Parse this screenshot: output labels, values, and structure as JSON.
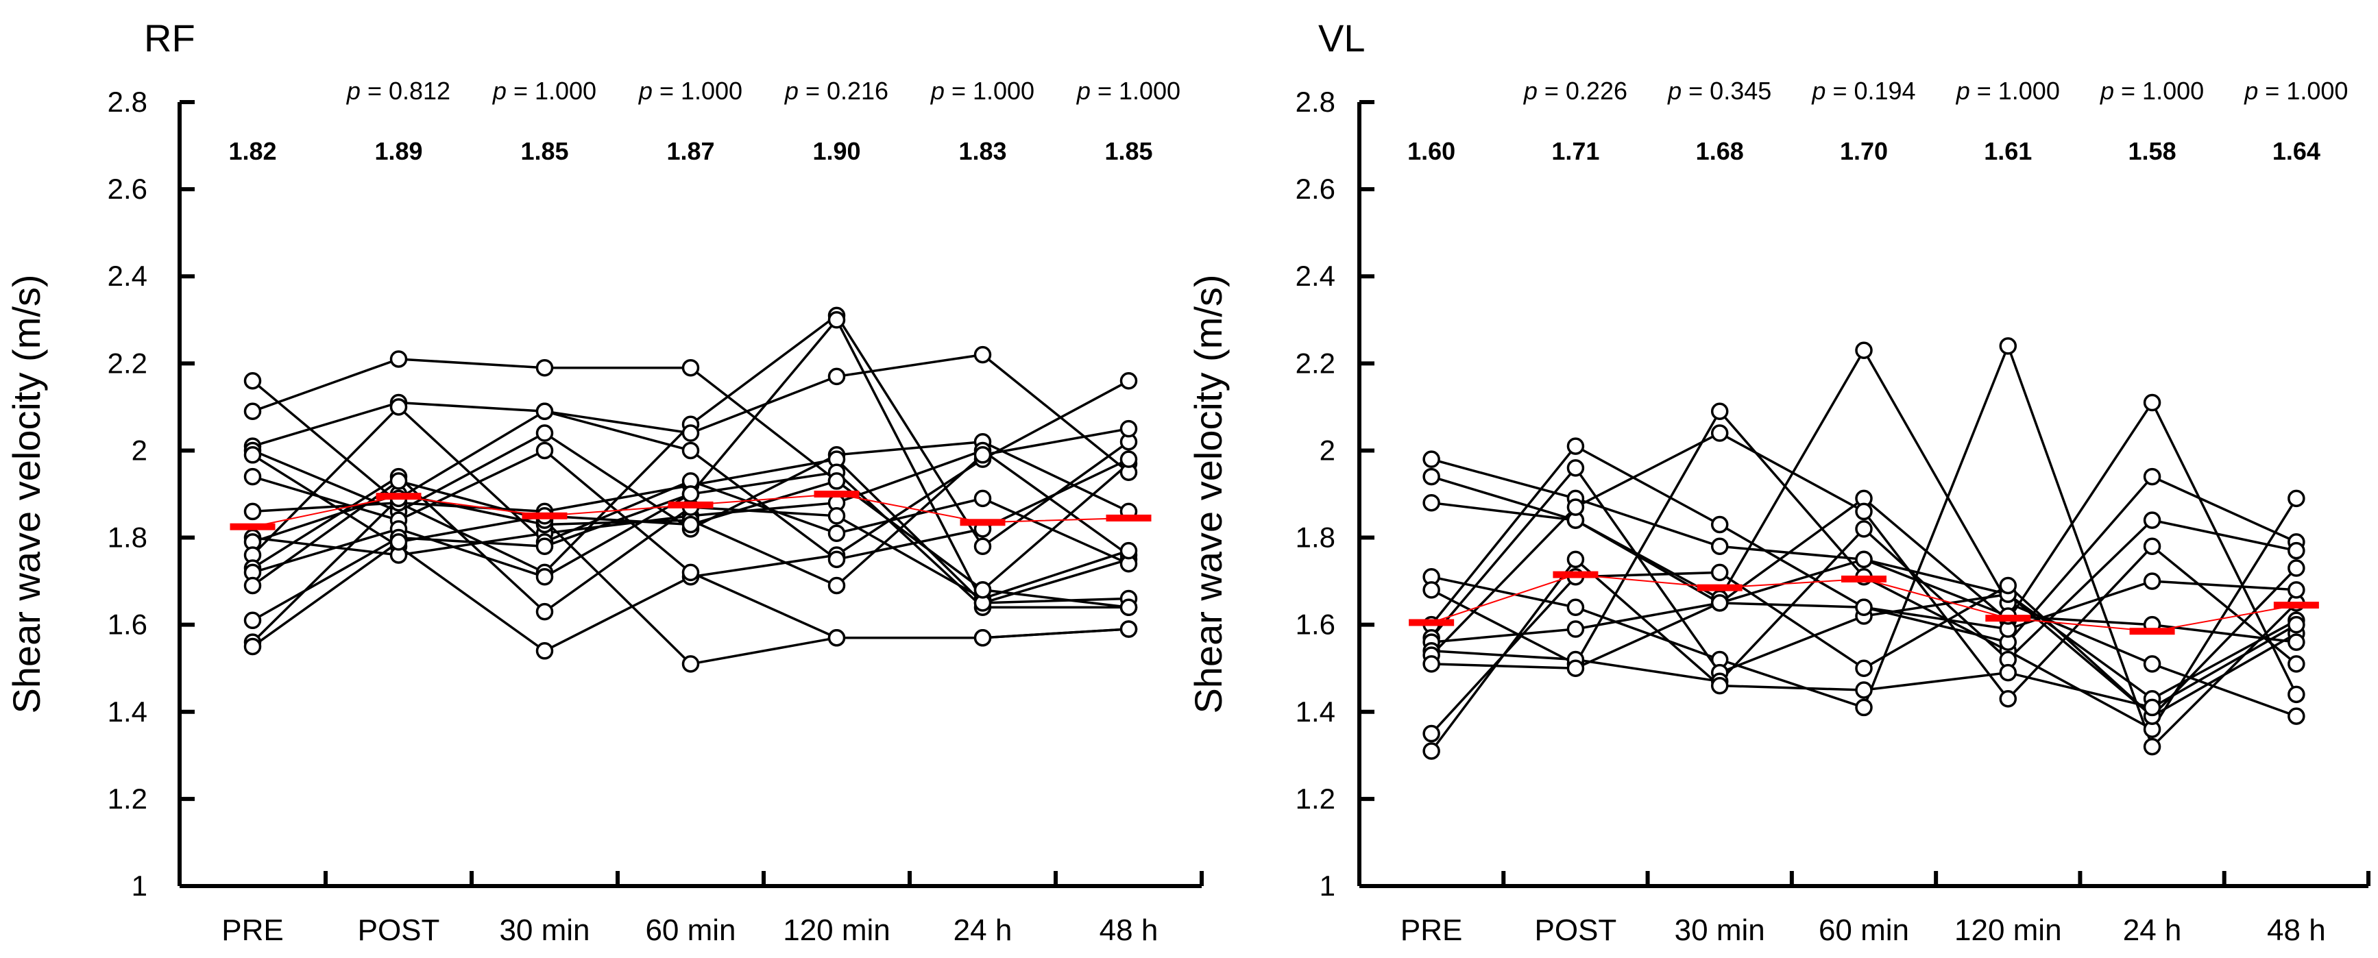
{
  "chart_data": [
    {
      "type": "line",
      "title": "RF",
      "ylabel": "Shear wave velocity (m/s)",
      "xlabel": "",
      "ylim": [
        1,
        2.8
      ],
      "yticks": [
        "1",
        "1.2",
        "1.4",
        "1.6",
        "1.8",
        "2",
        "2.2",
        "2.4",
        "2.6",
        "2.8"
      ],
      "categories": [
        "PRE",
        "POST",
        "30 min",
        "60 min",
        "120 min",
        "24 h",
        "48 h"
      ],
      "p_values": [
        "",
        "p = 0.812",
        "p = 1.000",
        "p = 1.000",
        "p = 0.216",
        "p = 1.000",
        "p = 1.000"
      ],
      "means_labels": [
        "1.82",
        "1.89",
        "1.85",
        "1.87",
        "1.90",
        "1.83",
        "1.85"
      ],
      "mean_values": [
        1.825,
        1.895,
        1.85,
        1.875,
        1.9,
        1.835,
        1.845
      ],
      "mean_color": "#ff0000",
      "grid": false,
      "series": [
        {
          "values": [
            2.16,
            1.88,
            1.72,
            2.06,
            2.31,
            1.78,
            2.02
          ]
        },
        {
          "values": [
            2.09,
            2.21,
            2.19,
            2.19,
            1.93,
            1.68,
            1.97
          ]
        },
        {
          "values": [
            2.01,
            2.11,
            2.09,
            2.04,
            2.17,
            2.22,
            1.95
          ]
        },
        {
          "values": [
            2.0,
            1.86,
            2.04,
            1.82,
            1.99,
            2.02,
            1.86
          ]
        },
        {
          "values": [
            1.99,
            1.78,
            1.54,
            1.71,
            1.76,
            1.98,
            2.16
          ]
        },
        {
          "values": [
            1.94,
            1.84,
            2.0,
            1.72,
            1.57,
            1.57,
            1.59
          ]
        },
        {
          "values": [
            1.86,
            1.88,
            1.86,
            1.92,
            1.98,
            1.65,
            1.75
          ]
        },
        {
          "values": [
            1.8,
            1.76,
            1.81,
            1.85,
            1.88,
            2.0,
            1.76
          ]
        },
        {
          "values": [
            1.79,
            1.9,
            1.83,
            1.84,
            1.69,
            1.99,
            2.05
          ]
        },
        {
          "values": [
            1.76,
            2.1,
            1.79,
            1.93,
            1.81,
            1.89,
            1.74
          ]
        },
        {
          "values": [
            1.73,
            1.94,
            1.63,
            1.87,
            1.85,
            1.66,
            1.77
          ]
        },
        {
          "values": [
            1.72,
            1.82,
            1.71,
            1.9,
            1.95,
            1.64,
            1.64
          ]
        },
        {
          "values": [
            1.69,
            1.93,
            1.84,
            1.51,
            1.57,
            1.57,
            1.59
          ]
        },
        {
          "values": [
            1.61,
            1.8,
            1.78,
            1.9,
            2.3,
            1.65,
            1.66
          ]
        },
        {
          "values": [
            1.56,
            1.89,
            2.09,
            2.0,
            1.75,
            1.82,
            1.98
          ]
        },
        {
          "values": [
            1.55,
            1.79,
            1.85,
            1.83,
            1.93,
            1.68,
            1.64
          ]
        }
      ]
    },
    {
      "type": "line",
      "title": "VL",
      "ylabel": "Shear wave velocity (m/s)",
      "xlabel": "",
      "ylim": [
        1,
        2.8
      ],
      "yticks": [
        "1",
        "1.2",
        "1.4",
        "1.6",
        "1.8",
        "2",
        "2.2",
        "2.4",
        "2.6",
        "2.8"
      ],
      "categories": [
        "PRE",
        "POST",
        "30 min",
        "60 min",
        "120 min",
        "24 h",
        "48 h"
      ],
      "p_values": [
        "",
        "p = 0.226",
        "p = 0.345",
        "p = 0.194",
        "p = 1.000",
        "p = 1.000",
        "p = 1.000"
      ],
      "means_labels": [
        "1.60",
        "1.71",
        "1.68",
        "1.70",
        "1.61",
        "1.58",
        "1.64"
      ],
      "mean_values": [
        1.605,
        1.715,
        1.685,
        1.705,
        1.615,
        1.585,
        1.645
      ],
      "mean_color": "#ff0000",
      "grid": false,
      "series": [
        {
          "values": [
            1.98,
            1.89,
            1.78,
            1.75,
            1.67,
            1.43,
            1.61
          ]
        },
        {
          "values": [
            1.94,
            1.84,
            1.65,
            1.89,
            1.61,
            2.11,
            1.44
          ]
        },
        {
          "values": [
            1.88,
            1.84,
            1.66,
            2.23,
            1.65,
            1.51,
            1.39
          ]
        },
        {
          "values": [
            1.71,
            1.64,
            1.52,
            1.41,
            2.24,
            1.32,
            1.65
          ]
        },
        {
          "values": [
            1.68,
            1.51,
            2.09,
            1.71,
            1.54,
            1.36,
            1.89
          ]
        },
        {
          "values": [
            1.6,
            2.01,
            1.83,
            1.64,
            1.56,
            1.94,
            1.79
          ]
        },
        {
          "values": [
            1.57,
            1.96,
            1.49,
            1.62,
            1.67,
            1.39,
            1.58
          ]
        },
        {
          "values": [
            1.56,
            1.59,
            1.65,
            1.64,
            1.59,
            1.7,
            1.68
          ]
        },
        {
          "values": [
            1.54,
            1.52,
            1.47,
            1.82,
            1.52,
            1.84,
            1.77
          ]
        },
        {
          "values": [
            1.53,
            1.87,
            2.04,
            1.86,
            1.43,
            1.78,
            1.51
          ]
        },
        {
          "values": [
            1.51,
            1.5,
            1.65,
            1.75,
            1.62,
            1.6,
            1.56
          ]
        },
        {
          "values": [
            1.35,
            1.71,
            1.72,
            1.5,
            1.69,
            1.39,
            1.73
          ]
        },
        {
          "values": [
            1.31,
            1.75,
            1.46,
            1.45,
            1.49,
            1.41,
            1.6
          ]
        }
      ]
    }
  ]
}
